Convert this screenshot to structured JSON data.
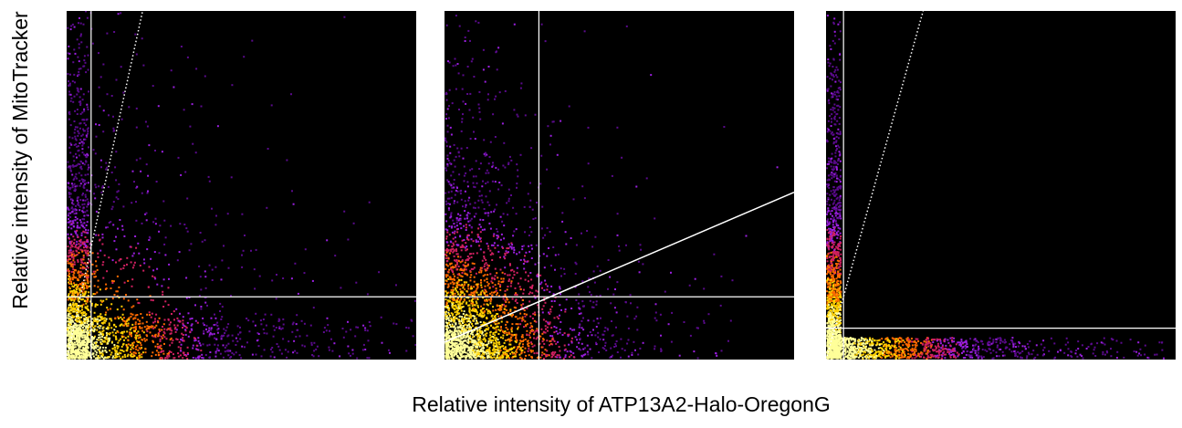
{
  "chart_data": {
    "type": "scatter",
    "description_type": "density scatter plots (colocalization), 3 panels",
    "shared_xlabel": "Relative intensity of ATP13A2-Halo-OregonG",
    "shared_ylabel": "Relative intensity of MitoTracker",
    "colormap": [
      "#000000",
      "#5a0a8c",
      "#9b1fe0",
      "#d02060",
      "#ff6a00",
      "#ffd000",
      "#ffff99"
    ],
    "grid": false,
    "panels": [
      {
        "xlim": [
          0,
          1
        ],
        "ylim": [
          0,
          1
        ],
        "threshold_x": 0.07,
        "threshold_y": 0.18,
        "fit_line": {
          "slope": 4.6,
          "intercept": 0.0,
          "style": "dotted"
        },
        "density": "high near origin, spreading along both axes"
      },
      {
        "xlim": [
          0,
          1
        ],
        "ylim": [
          0,
          1
        ],
        "threshold_x": 0.27,
        "threshold_y": 0.18,
        "fit_line": {
          "slope": 0.43,
          "intercept": 0.05,
          "style": "solid"
        },
        "density": "high near origin and lower-left, broad spread"
      },
      {
        "xlim": [
          0,
          1
        ],
        "ylim": [
          0,
          1
        ],
        "threshold_x": 0.05,
        "threshold_y": 0.09,
        "fit_line": {
          "slope": 3.6,
          "intercept": 0.0,
          "style": "dotted"
        },
        "density": "concentrated along both axes"
      }
    ]
  }
}
